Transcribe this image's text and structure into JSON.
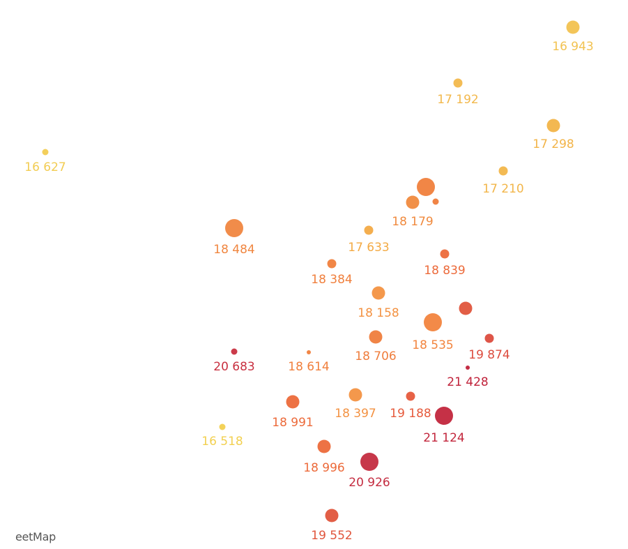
{
  "map": {
    "attribution": "eetMap",
    "scale_colors": {
      "low": "#f2c94c",
      "mid_low": "#f2a84a",
      "mid": "#f07f3c",
      "mid_high": "#e0553c",
      "high": "#c0223a"
    },
    "markers": [
      {
        "value": "16 943",
        "color": "#f2c250",
        "size": "medium"
      },
      {
        "value": "17 192",
        "color": "#f2b84c",
        "size": "small"
      },
      {
        "value": "17 298",
        "color": "#f2b448",
        "size": "medium"
      },
      {
        "value": "16 627",
        "color": "#f2cc52",
        "size": "tiny"
      },
      {
        "value": "17 210",
        "color": "#f2b64a",
        "size": "small"
      },
      {
        "value": "",
        "color": "#f07f3c",
        "size": "large"
      },
      {
        "value": "18 179",
        "color": "#f08a3e",
        "size": "medium"
      },
      {
        "value": "",
        "color": "#ef7d3c",
        "size": "tiny"
      },
      {
        "value": "18 484",
        "color": "#f08640",
        "size": "large"
      },
      {
        "value": "17 633",
        "color": "#f3aa44",
        "size": "small"
      },
      {
        "value": "18 839",
        "color": "#ec6a3a",
        "size": "small"
      },
      {
        "value": "18 384",
        "color": "#f07f3c",
        "size": "small"
      },
      {
        "value": "18 158",
        "color": "#f39242",
        "size": "medium"
      },
      {
        "value": "",
        "color": "#e0553c",
        "size": "medium"
      },
      {
        "value": "18 535",
        "color": "#f2843e",
        "size": "large"
      },
      {
        "value": "18 706",
        "color": "#ef7d3c",
        "size": "medium"
      },
      {
        "value": "19 874",
        "color": "#dc4c3e",
        "size": "small"
      },
      {
        "value": "20 683",
        "color": "#c83040",
        "size": "tiny"
      },
      {
        "value": "18 614",
        "color": "#f07f3c",
        "size": "micro"
      },
      {
        "value": "21 428",
        "color": "#c0223a",
        "size": "micro"
      },
      {
        "value": "18 991",
        "color": "#ec6a3a",
        "size": "medium"
      },
      {
        "value": "18 397",
        "color": "#f39242",
        "size": "medium"
      },
      {
        "value": "19 188",
        "color": "#e65a3c",
        "size": "small"
      },
      {
        "value": "21 124",
        "color": "#c2263c",
        "size": "large"
      },
      {
        "value": "16 518",
        "color": "#f2d050",
        "size": "tiny"
      },
      {
        "value": "18 996",
        "color": "#ec6a3a",
        "size": "medium"
      },
      {
        "value": "20 926",
        "color": "#c42c40",
        "size": "large"
      },
      {
        "value": "19 552",
        "color": "#e0553c",
        "size": "medium"
      }
    ]
  }
}
